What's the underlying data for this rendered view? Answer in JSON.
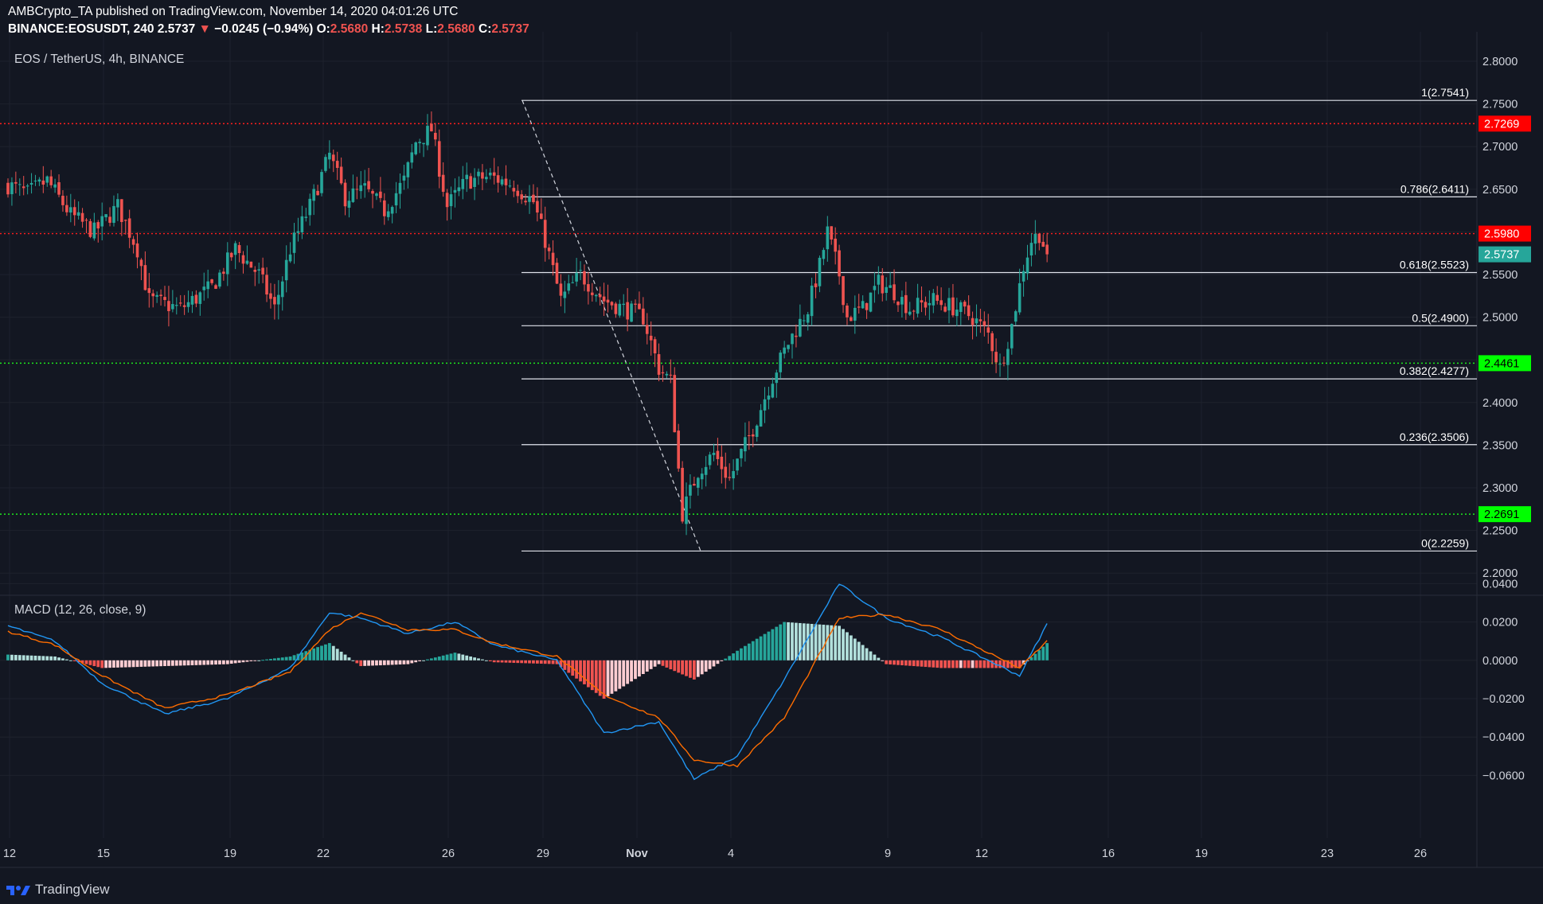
{
  "header": {
    "line1": "AMBCrypto_TA published on TradingView.com, November 14, 2020 04:01:26 UTC",
    "symbol": "BINANCE:EOSUSDT, 240",
    "last": "2.5737",
    "change_arrow": "▼",
    "change": "−0.0245 (−0.94%)",
    "o_label": "O:",
    "o": "2.5680",
    "h_label": "H:",
    "h": "2.5738",
    "l_label": "L:",
    "l": "2.5680",
    "c_label": "C:",
    "c": "2.5737"
  },
  "pane_title": "EOS / TetherUS, 4h, BINANCE",
  "macd_title": "MACD (12, 26, close, 9)",
  "footer": {
    "brand": "TradingView"
  },
  "colors": {
    "background": "#131722",
    "up": "#26a69a",
    "down": "#ef5350",
    "macd_line": "#2196f3",
    "signal_line": "#ff6d00",
    "hist_up_strong": "#26a69a",
    "hist_up_weak": "#b2dfdb",
    "hist_down_strong": "#ef5350",
    "hist_down_weak": "#ffcdd2",
    "resistance": "#ff1e1e",
    "support": "#1ee81e"
  },
  "chart_data": [
    {
      "type": "candlestick",
      "title": "EOS / TetherUS, 4h, BINANCE",
      "x_ticks": [
        "12",
        "15",
        "19",
        "22",
        "26",
        "29",
        "Nov",
        "4",
        "9",
        "12",
        "16",
        "19",
        "23",
        "26"
      ],
      "y_ticks": [
        "2.8000",
        "2.7500",
        "2.7000",
        "2.6500",
        "2.6000",
        "2.5500",
        "2.5000",
        "2.4500",
        "2.4000",
        "2.3500",
        "2.3000",
        "2.2500",
        "2.2000"
      ],
      "ylim": [
        2.18,
        2.82
      ],
      "price_labels": [
        {
          "value": "2.7269",
          "price": 2.7269,
          "kind": "resistance"
        },
        {
          "value": "2.5980",
          "price": 2.598,
          "kind": "resistance"
        },
        {
          "value": "2.5737",
          "price": 2.5737,
          "kind": "last"
        },
        {
          "value": "2.4461",
          "price": 2.4461,
          "kind": "support"
        },
        {
          "value": "2.2691",
          "price": 2.2691,
          "kind": "support"
        }
      ],
      "fib_levels": [
        {
          "label": "1(2.7541)",
          "price": 2.7541
        },
        {
          "label": "0.786(2.6411)",
          "price": 2.6411
        },
        {
          "label": "0.618(2.5523)",
          "price": 2.5523
        },
        {
          "label": "0.5(2.4900)",
          "price": 2.49
        },
        {
          "label": "0.382(2.4277)",
          "price": 2.4277
        },
        {
          "label": "0.236(2.3506)",
          "price": 2.3506
        },
        {
          "label": "0(2.2259)",
          "price": 2.2259
        }
      ],
      "anchors": [
        {
          "desc": "price path",
          "points": [
            [
              0,
              2.655
            ],
            [
              5,
              2.645
            ],
            [
              10,
              2.66
            ],
            [
              16,
              2.62
            ],
            [
              22,
              2.6
            ],
            [
              28,
              2.63
            ],
            [
              33,
              2.58
            ],
            [
              36,
              2.52
            ],
            [
              44,
              2.51
            ],
            [
              52,
              2.535
            ],
            [
              58,
              2.58
            ],
            [
              64,
              2.55
            ],
            [
              68,
              2.51
            ],
            [
              72,
              2.58
            ],
            [
              77,
              2.63
            ],
            [
              82,
              2.69
            ],
            [
              86,
              2.64
            ],
            [
              91,
              2.65
            ],
            [
              96,
              2.625
            ],
            [
              101,
              2.66
            ],
            [
              104,
              2.705
            ],
            [
              108,
              2.72
            ],
            [
              112,
              2.63
            ],
            [
              117,
              2.66
            ],
            [
              123,
              2.665
            ],
            [
              129,
              2.655
            ],
            [
              134,
              2.635
            ],
            [
              137,
              2.59
            ],
            [
              141,
              2.52
            ],
            [
              146,
              2.55
            ],
            [
              152,
              2.52
            ],
            [
              157,
              2.51
            ],
            [
              162,
              2.5
            ],
            [
              166,
              2.44
            ],
            [
              169,
              2.425
            ],
            [
              172,
              2.27
            ],
            [
              176,
              2.32
            ],
            [
              180,
              2.34
            ],
            [
              184,
              2.31
            ],
            [
              190,
              2.37
            ],
            [
              195,
              2.43
            ],
            [
              199,
              2.47
            ],
            [
              204,
              2.51
            ],
            [
              207,
              2.56
            ],
            [
              209,
              2.6
            ],
            [
              212,
              2.55
            ],
            [
              214,
              2.5
            ],
            [
              218,
              2.51
            ],
            [
              222,
              2.54
            ],
            [
              226,
              2.53
            ],
            [
              230,
              2.51
            ],
            [
              236,
              2.52
            ],
            [
              242,
              2.51
            ],
            [
              246,
              2.5
            ],
            [
              250,
              2.48
            ],
            [
              253,
              2.44
            ],
            [
              256,
              2.49
            ],
            [
              259,
              2.56
            ],
            [
              261,
              2.59
            ],
            [
              263,
              2.598
            ],
            [
              265,
              2.5737
            ]
          ]
        }
      ]
    },
    {
      "type": "line",
      "title": "MACD (12, 26, close, 9)",
      "y_ticks": [
        "0.0400",
        "0.0200",
        "0.0000",
        "−0.0200",
        "−0.0400",
        "−0.0600"
      ],
      "ylim": [
        -0.066,
        0.044
      ],
      "series": [
        {
          "name": "MACD",
          "anchors": [
            [
              0,
              0.018
            ],
            [
              12,
              0.01
            ],
            [
              24,
              -0.012
            ],
            [
              40,
              -0.028
            ],
            [
              56,
              -0.02
            ],
            [
              72,
              -0.004
            ],
            [
              82,
              0.025
            ],
            [
              90,
              0.022
            ],
            [
              102,
              0.014
            ],
            [
              114,
              0.02
            ],
            [
              124,
              0.008
            ],
            [
              140,
              0.0
            ],
            [
              152,
              -0.038
            ],
            [
              166,
              -0.032
            ],
            [
              175,
              -0.062
            ],
            [
              186,
              -0.05
            ],
            [
              198,
              -0.01
            ],
            [
              212,
              0.04
            ],
            [
              224,
              0.022
            ],
            [
              238,
              0.012
            ],
            [
              250,
              0.0
            ],
            [
              258,
              -0.008
            ],
            [
              265,
              0.019
            ]
          ]
        },
        {
          "name": "Signal",
          "anchors": [
            [
              0,
              0.015
            ],
            [
              12,
              0.008
            ],
            [
              24,
              -0.008
            ],
            [
              40,
              -0.025
            ],
            [
              56,
              -0.018
            ],
            [
              72,
              -0.006
            ],
            [
              82,
              0.016
            ],
            [
              90,
              0.025
            ],
            [
              102,
              0.016
            ],
            [
              114,
              0.016
            ],
            [
              124,
              0.009
            ],
            [
              140,
              0.002
            ],
            [
              152,
              -0.018
            ],
            [
              166,
              -0.03
            ],
            [
              175,
              -0.052
            ],
            [
              186,
              -0.055
            ],
            [
              198,
              -0.03
            ],
            [
              212,
              0.022
            ],
            [
              224,
              0.024
            ],
            [
              238,
              0.016
            ],
            [
              250,
              0.004
            ],
            [
              258,
              -0.004
            ],
            [
              265,
              0.01
            ]
          ]
        }
      ]
    }
  ]
}
